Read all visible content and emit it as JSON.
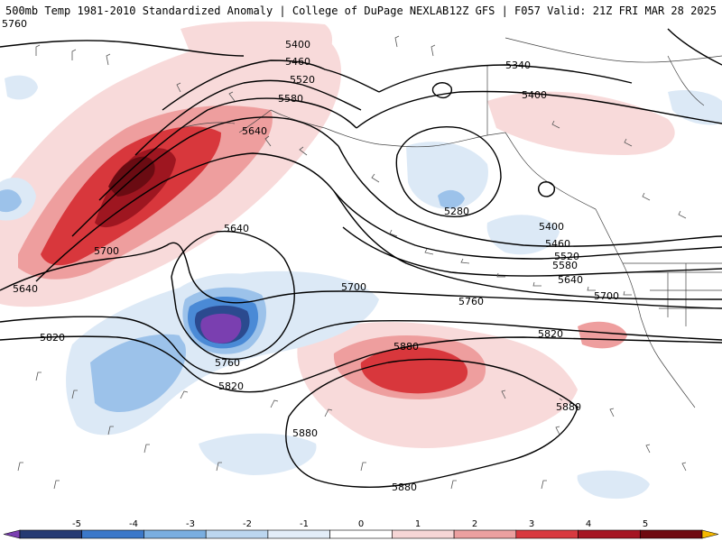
{
  "header": {
    "title_left": "500mb Temp 1981-2010 Standardized Anomaly | College of DuPage NEXLAB",
    "title_right": "12Z GFS | F057 Valid: 21Z FRI MAR 28 2025"
  },
  "legend": {
    "ticks": [
      "-5",
      "-4",
      "-3",
      "-2",
      "-1",
      "0",
      "1",
      "2",
      "3",
      "4",
      "5"
    ],
    "colors": [
      "#7a3fb0",
      "#253a73",
      "#3b78c9",
      "#7aaee0",
      "#bcd6ef",
      "#e3edf8",
      "#ffffff",
      "#f6d6d6",
      "#eba0a0",
      "#d8393f",
      "#a51522",
      "#6f0a10",
      "#f5b800"
    ]
  },
  "anomaly_colors": {
    "light_red": "#f8dada",
    "mid_red": "#ee9e9e",
    "red": "#d8373c",
    "dark_red": "#9e1620",
    "darkest_red": "#6a0b12",
    "light_blue": "#dce9f6",
    "mid_blue": "#9cc2ea",
    "blue": "#4a8ad6",
    "dark_blue": "#2b4a8f",
    "purple": "#7a3fb0"
  },
  "contour_labels": [
    {
      "id": "c5400a",
      "text": "5400"
    },
    {
      "id": "c5460a",
      "text": "5460"
    },
    {
      "id": "c5520a",
      "text": "5520"
    },
    {
      "id": "c5580a",
      "text": "5580"
    },
    {
      "id": "c5640a",
      "text": "5640"
    },
    {
      "id": "c5340",
      "text": "5340"
    },
    {
      "id": "c5400b",
      "text": "5400"
    },
    {
      "id": "c5280",
      "text": "5280"
    },
    {
      "id": "c5400c",
      "text": "5400"
    },
    {
      "id": "c5460b",
      "text": "5460"
    },
    {
      "id": "c5520b",
      "text": "5520"
    },
    {
      "id": "c5580b",
      "text": "5580"
    },
    {
      "id": "c5640b",
      "text": "5640"
    },
    {
      "id": "c5640c",
      "text": "5640"
    },
    {
      "id": "c5700a",
      "text": "5700"
    },
    {
      "id": "c5640d",
      "text": "5640"
    },
    {
      "id": "c5700b",
      "text": "5700"
    },
    {
      "id": "c5700c",
      "text": "5700"
    },
    {
      "id": "c5760a",
      "text": "5760"
    },
    {
      "id": "c5760b",
      "text": "5760"
    },
    {
      "id": "c5820a",
      "text": "5820"
    },
    {
      "id": "c5820b",
      "text": "5820"
    },
    {
      "id": "c5820c",
      "text": "5820"
    },
    {
      "id": "c5880a",
      "text": "5880"
    },
    {
      "id": "c5880b",
      "text": "5880"
    },
    {
      "id": "c5880c",
      "text": "5880"
    },
    {
      "id": "c5880d",
      "text": "5880"
    },
    {
      "id": "c5760top",
      "text": "5760"
    }
  ]
}
